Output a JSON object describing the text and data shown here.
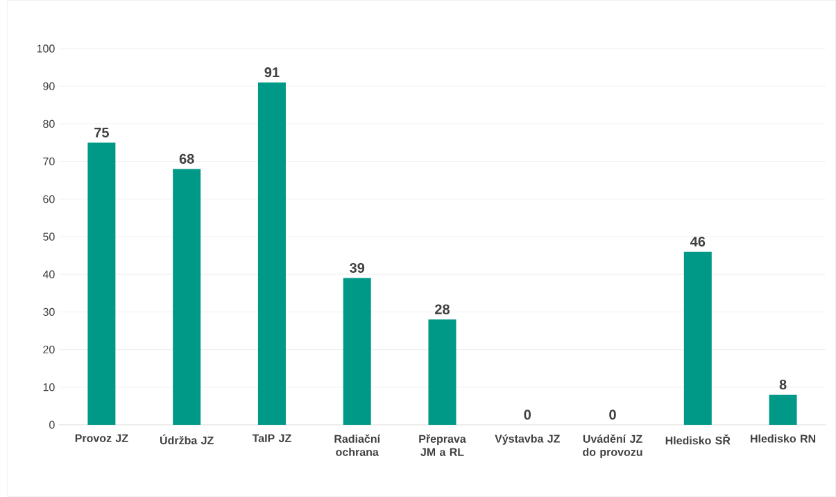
{
  "chart_data": {
    "type": "bar",
    "categories": [
      "Provoz JZ",
      "Údržba JZ",
      "TaIP JZ",
      "Radiační ochrana",
      "Přeprava JM a RL",
      "Výstavba JZ",
      "Uvádění JZ do provozu",
      "Hledisko SŘ",
      "Hledisko RN"
    ],
    "values": [
      75,
      68,
      91,
      39,
      28,
      0,
      0,
      46,
      8
    ],
    "color": "#009988",
    "ylim": [
      0,
      100
    ],
    "yticks": [
      0,
      10,
      20,
      30,
      40,
      50,
      60,
      70,
      80,
      90,
      100
    ],
    "grid": "y",
    "data_labels": true
  }
}
